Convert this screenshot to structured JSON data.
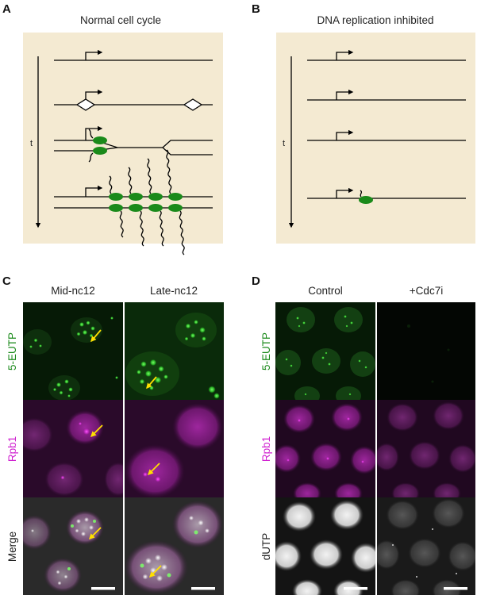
{
  "panels": {
    "A": {
      "label": "A",
      "title": "Normal cell cycle",
      "time_label": "t"
    },
    "B": {
      "label": "B",
      "title": "DNA replication inhibited",
      "time_label": "t"
    },
    "C": {
      "label": "C",
      "columns": [
        "Mid-nc12",
        "Late-nc12"
      ],
      "rows": [
        "5-EUTP",
        "Rpb1",
        "Merge"
      ]
    },
    "D": {
      "label": "D",
      "columns": [
        "Control",
        "+Cdc7i"
      ],
      "rows": [
        "5-EUTP",
        "Rpb1",
        "dUTP"
      ]
    }
  },
  "colors": {
    "panel_bg": "#f4ead2",
    "green": "#1a8a1a",
    "magenta": "#d020d0",
    "arrow_yellow": "#ffe000",
    "dark_bg": "#0a0a0a"
  }
}
